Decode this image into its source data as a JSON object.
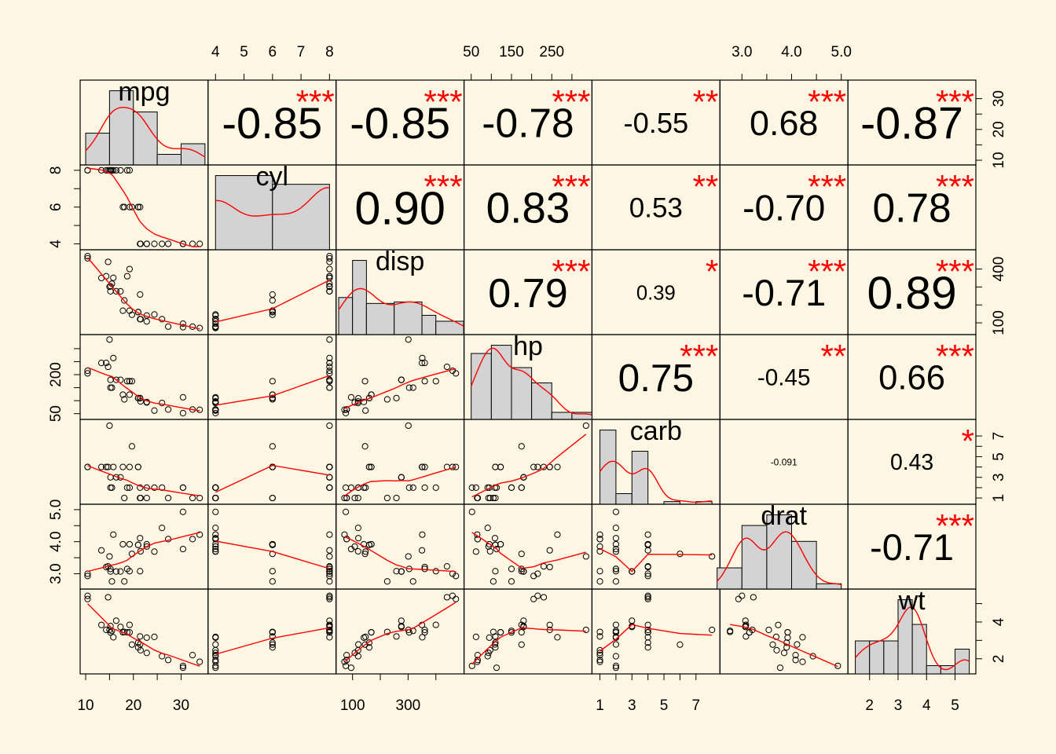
{
  "chart_data": {
    "type": "scatter-matrix",
    "title": "",
    "background": "#FDF6E3",
    "colors": {
      "smooth": "#FF0000",
      "stars": "#FF0000",
      "hist_fill": "#D3D3D3",
      "point": "#000000"
    },
    "variables": [
      {
        "name": "mpg",
        "range": [
          9.5,
          35.0
        ],
        "ticks": [
          10,
          20,
          30
        ],
        "tick_labels": [
          "10",
          "20",
          "30"
        ]
      },
      {
        "name": "cyl",
        "range": [
          3.85,
          8.12
        ],
        "ticks": [
          4,
          5,
          6,
          7,
          8
        ],
        "tick_labels": [
          "4",
          "5",
          "6",
          "7",
          "8"
        ]
      },
      {
        "name": "disp",
        "range": [
          52,
          490
        ],
        "ticks": [
          100,
          200,
          300,
          400
        ],
        "tick_labels": [
          "100",
          "",
          "300",
          ""
        ]
      },
      {
        "name": "hp",
        "range": [
          40,
          342
        ],
        "ticks": [
          50,
          100,
          150,
          200,
          250,
          300
        ],
        "tick_labels": [
          "50",
          "",
          "150",
          "",
          "250",
          ""
        ]
      },
      {
        "name": "carb",
        "range": [
          0.7,
          8.3
        ],
        "ticks": [
          1,
          2,
          3,
          4,
          5,
          6,
          7
        ],
        "tick_labels": [
          "1",
          "",
          "3",
          "",
          "5",
          "",
          "7"
        ]
      },
      {
        "name": "drat",
        "range": [
          2.62,
          5.07
        ],
        "ticks": [
          3.0,
          3.5,
          4.0,
          4.5,
          5.0
        ],
        "tick_labels": [
          "3.0",
          "",
          "4.0",
          "",
          "5.0"
        ]
      },
      {
        "name": "wt",
        "range": [
          1.35,
          5.62
        ],
        "ticks": [
          2,
          3,
          4,
          5
        ],
        "tick_labels": [
          "2",
          "3",
          "4",
          "5"
        ]
      }
    ],
    "side_ticks": {
      "top": [
        {
          "var": 1,
          "ticks": [
            4,
            5,
            6,
            7,
            8
          ],
          "labels": [
            "4",
            "5",
            "6",
            "7",
            "8"
          ]
        },
        {
          "var": 3,
          "ticks": [
            50,
            100,
            150,
            200,
            250,
            300
          ],
          "labels": [
            "50",
            "",
            "150",
            "",
            "250",
            ""
          ]
        },
        {
          "var": 5,
          "ticks": [
            3.0,
            3.5,
            4.0,
            4.5,
            5.0
          ],
          "labels": [
            "3.0",
            "",
            "4.0",
            "",
            "5.0"
          ]
        }
      ],
      "bottom": [
        {
          "var": 0,
          "ticks": [
            10,
            15,
            20,
            25,
            30
          ],
          "labels": [
            "10",
            "",
            "20",
            "",
            "30"
          ]
        },
        {
          "var": 2,
          "ticks": [
            100,
            200,
            300,
            400
          ],
          "labels": [
            "100",
            "",
            "300",
            ""
          ]
        },
        {
          "var": 4,
          "ticks": [
            1,
            2,
            3,
            4,
            5,
            6,
            7
          ],
          "labels": [
            "1",
            "",
            "3",
            "",
            "5",
            "",
            "7"
          ]
        },
        {
          "var": 6,
          "ticks": [
            2,
            3,
            4,
            5
          ],
          "labels": [
            "2",
            "3",
            "4",
            "5"
          ]
        }
      ],
      "left": [
        {
          "var": 1,
          "ticks": [
            4,
            5,
            6,
            7,
            8
          ],
          "labels": [
            "4",
            "",
            "6",
            "",
            "8"
          ]
        },
        {
          "var": 3,
          "ticks": [
            50,
            100,
            150,
            200,
            250,
            300
          ],
          "labels": [
            "50",
            "",
            "",
            "200",
            "",
            ""
          ]
        },
        {
          "var": 5,
          "ticks": [
            3.0,
            3.5,
            4.0,
            4.5,
            5.0
          ],
          "labels": [
            "3.0",
            "",
            "4.0",
            "",
            "5.0"
          ]
        }
      ],
      "right": [
        {
          "var": 0,
          "ticks": [
            10,
            15,
            20,
            25,
            30
          ],
          "labels": [
            "10",
            "",
            "20",
            "",
            "30"
          ]
        },
        {
          "var": 2,
          "ticks": [
            100,
            200,
            300,
            400
          ],
          "labels": [
            "100",
            "",
            "",
            "400"
          ]
        },
        {
          "var": 4,
          "ticks": [
            1,
            2,
            3,
            4,
            5,
            6,
            7
          ],
          "labels": [
            "1",
            "",
            "3",
            "",
            "5",
            "",
            "7"
          ]
        },
        {
          "var": 6,
          "ticks": [
            2,
            3,
            4,
            5
          ],
          "labels": [
            "2",
            "",
            "4",
            ""
          ]
        }
      ]
    },
    "correlations": [
      {
        "row": 0,
        "col": 1,
        "r": "-0.85",
        "stars": "***"
      },
      {
        "row": 0,
        "col": 2,
        "r": "-0.85",
        "stars": "***"
      },
      {
        "row": 0,
        "col": 3,
        "r": "-0.78",
        "stars": "***"
      },
      {
        "row": 0,
        "col": 4,
        "r": "-0.55",
        "stars": "**"
      },
      {
        "row": 0,
        "col": 5,
        "r": "0.68",
        "stars": "***"
      },
      {
        "row": 0,
        "col": 6,
        "r": "-0.87",
        "stars": "***"
      },
      {
        "row": 1,
        "col": 2,
        "r": "0.90",
        "stars": "***"
      },
      {
        "row": 1,
        "col": 3,
        "r": "0.83",
        "stars": "***"
      },
      {
        "row": 1,
        "col": 4,
        "r": "0.53",
        "stars": "**"
      },
      {
        "row": 1,
        "col": 5,
        "r": "-0.70",
        "stars": "***"
      },
      {
        "row": 1,
        "col": 6,
        "r": "0.78",
        "stars": "***"
      },
      {
        "row": 2,
        "col": 3,
        "r": "0.79",
        "stars": "***"
      },
      {
        "row": 2,
        "col": 4,
        "r": "0.39",
        "stars": "*"
      },
      {
        "row": 2,
        "col": 5,
        "r": "-0.71",
        "stars": "***"
      },
      {
        "row": 2,
        "col": 6,
        "r": "0.89",
        "stars": "***"
      },
      {
        "row": 3,
        "col": 4,
        "r": "0.75",
        "stars": "***"
      },
      {
        "row": 3,
        "col": 5,
        "r": "-0.45",
        "stars": "**"
      },
      {
        "row": 3,
        "col": 6,
        "r": "0.66",
        "stars": "***"
      },
      {
        "row": 4,
        "col": 5,
        "r": "-0.091",
        "stars": ""
      },
      {
        "row": 4,
        "col": 6,
        "r": "0.43",
        "stars": "*"
      },
      {
        "row": 5,
        "col": 6,
        "r": "-0.71",
        "stars": "***"
      }
    ],
    "histograms": [
      {
        "var": 0,
        "breaks": [
          10,
          15,
          20,
          25,
          30,
          35
        ],
        "density": [
          0.0375,
          0.0875,
          0.0625,
          0.0125,
          0.025
        ]
      },
      {
        "var": 1,
        "breaks": [
          4,
          6,
          8
        ],
        "density": [
          0.2656,
          0.2344
        ]
      },
      {
        "var": 2,
        "breaks": [
          50,
          100,
          150,
          250,
          350,
          400,
          500
        ],
        "density": [
          0.0025,
          0.005,
          0.0021,
          0.0022,
          0.0013,
          0.0009
        ]
      },
      {
        "var": 3,
        "breaks": [
          50,
          100,
          150,
          200,
          250,
          300,
          350
        ],
        "density": [
          0.0056,
          0.0063,
          0.0044,
          0.0031,
          0.0006,
          0.0006
        ]
      },
      {
        "var": 4,
        "breaks": [
          1,
          2,
          3,
          4,
          5,
          6,
          7,
          8
        ],
        "density": [
          0.4375,
          0.0625,
          0.3125,
          0.0,
          0.0156,
          0.0,
          0.0156
        ]
      },
      {
        "var": 5,
        "breaks": [
          2.5,
          3.0,
          3.5,
          4.0,
          4.5,
          5.0
        ],
        "density": [
          0.25,
          0.75,
          0.875,
          0.5625,
          0.0625
        ]
      },
      {
        "var": 6,
        "breaks": [
          1.5,
          2.0,
          2.5,
          3.0,
          3.5,
          4.0,
          4.5,
          5.0,
          5.5
        ],
        "density": [
          0.25,
          0.25,
          0.25,
          0.5625,
          0.375,
          0.0625,
          0.0625,
          0.1875
        ]
      }
    ],
    "data": [
      [
        21.0,
        6,
        160,
        110,
        4,
        3.9,
        2.62
      ],
      [
        21.0,
        6,
        160,
        110,
        4,
        3.9,
        2.875
      ],
      [
        22.8,
        4,
        108,
        93,
        1,
        3.85,
        2.32
      ],
      [
        21.4,
        6,
        258,
        110,
        1,
        3.08,
        3.215
      ],
      [
        18.7,
        8,
        360,
        175,
        2,
        3.15,
        3.44
      ],
      [
        18.1,
        6,
        225,
        105,
        1,
        2.76,
        3.46
      ],
      [
        14.3,
        8,
        360,
        245,
        4,
        3.21,
        3.57
      ],
      [
        24.4,
        4,
        146.7,
        62,
        2,
        3.69,
        3.19
      ],
      [
        22.8,
        4,
        140.8,
        95,
        2,
        3.92,
        3.15
      ],
      [
        19.2,
        6,
        167.6,
        123,
        4,
        3.92,
        3.44
      ],
      [
        17.8,
        6,
        167.6,
        123,
        4,
        3.92,
        3.44
      ],
      [
        16.4,
        8,
        275.8,
        180,
        3,
        3.07,
        4.07
      ],
      [
        17.3,
        8,
        275.8,
        180,
        3,
        3.07,
        3.73
      ],
      [
        15.2,
        8,
        275.8,
        180,
        3,
        3.07,
        3.78
      ],
      [
        10.4,
        8,
        472,
        205,
        4,
        2.93,
        5.25
      ],
      [
        10.4,
        8,
        460,
        215,
        4,
        3.0,
        5.424
      ],
      [
        14.7,
        8,
        440,
        230,
        4,
        3.23,
        5.345
      ],
      [
        32.4,
        4,
        78.7,
        66,
        1,
        4.08,
        2.2
      ],
      [
        30.4,
        4,
        75.7,
        52,
        2,
        4.93,
        1.615
      ],
      [
        33.9,
        4,
        71.1,
        65,
        1,
        4.22,
        1.835
      ],
      [
        21.5,
        4,
        120.1,
        97,
        1,
        3.7,
        2.465
      ],
      [
        15.5,
        8,
        318,
        150,
        2,
        2.76,
        3.52
      ],
      [
        15.2,
        8,
        304,
        150,
        2,
        3.15,
        3.435
      ],
      [
        13.3,
        8,
        350,
        245,
        4,
        3.73,
        3.84
      ],
      [
        19.2,
        8,
        400,
        175,
        2,
        3.08,
        3.845
      ],
      [
        27.3,
        4,
        79,
        66,
        1,
        4.08,
        1.935
      ],
      [
        26.0,
        4,
        120.3,
        91,
        2,
        4.43,
        2.14
      ],
      [
        30.4,
        4,
        95.1,
        113,
        2,
        3.77,
        1.513
      ],
      [
        15.8,
        8,
        351,
        264,
        4,
        4.22,
        3.17
      ],
      [
        19.7,
        6,
        145,
        175,
        6,
        3.62,
        2.77
      ],
      [
        15.0,
        8,
        301,
        335,
        8,
        3.54,
        3.57
      ],
      [
        21.4,
        4,
        121,
        109,
        2,
        4.11,
        2.78
      ]
    ]
  }
}
